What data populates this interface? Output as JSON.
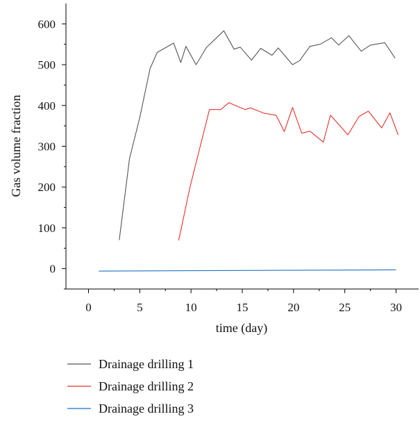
{
  "chart_data": {
    "type": "line",
    "title": "",
    "xlabel": "time (day)",
    "ylabel": "Gas volume fraction",
    "xlim": [
      -2.2,
      32.2
    ],
    "ylim": [
      -50,
      650
    ],
    "xticks": [
      0,
      5,
      10,
      15,
      20,
      25,
      30
    ],
    "yticks": [
      0,
      100,
      200,
      300,
      400,
      500,
      600
    ],
    "grid": false,
    "legend_position": "bottom-left, below plot",
    "series": [
      {
        "name": "Drainage drilling 1",
        "color": "#555555",
        "x": [
          3,
          4,
          5,
          6,
          6.7,
          8.3,
          9,
          9.5,
          10.5,
          11.5,
          13.2,
          14.2,
          14.8,
          15.9,
          16.8,
          17.9,
          18.5,
          19.9,
          20.6,
          21.6,
          22.6,
          23.7,
          24.4,
          25.4,
          26.6,
          27.5,
          28.9,
          29.9
        ],
        "y": [
          70,
          270,
          370,
          490,
          530,
          553,
          505,
          545,
          500,
          542,
          583,
          538,
          543,
          511,
          540,
          523,
          541,
          500,
          510,
          545,
          550,
          566,
          548,
          571,
          533,
          548,
          554,
          516
        ]
      },
      {
        "name": "Drainage drilling 2",
        "color": "#e8302a",
        "x": [
          8.8,
          9.9,
          11.8,
          12.9,
          13.7,
          14.5,
          15.3,
          15.8,
          17.1,
          18.3,
          19.1,
          19.9,
          20.8,
          21.6,
          22.9,
          23.6,
          24.6,
          25.3,
          26.4,
          27.3,
          28.6,
          29.4,
          30.2
        ],
        "y": [
          69,
          200,
          390,
          390,
          407,
          398,
          390,
          394,
          381,
          376,
          336,
          395,
          332,
          337,
          310,
          376,
          348,
          328,
          373,
          386,
          345,
          382,
          328
        ]
      },
      {
        "name": "Drainage drilling 3",
        "color": "#1e72c2",
        "x": [
          1,
          30
        ],
        "y": [
          -6,
          -3
        ]
      }
    ]
  }
}
